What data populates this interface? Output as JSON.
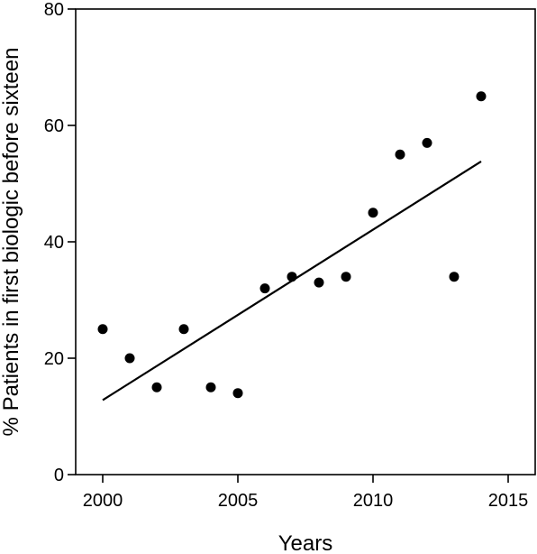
{
  "chart_data": {
    "type": "scatter",
    "title": "",
    "xlabel": "Years",
    "ylabel": "% Patients in first biologic before sixteen",
    "xlim": [
      1999,
      2016
    ],
    "ylim": [
      0,
      80
    ],
    "x_ticks": [
      2000,
      2005,
      2010,
      2015
    ],
    "y_ticks": [
      0,
      20,
      40,
      60,
      80
    ],
    "grid": false,
    "series": [
      {
        "points": [
          {
            "x": 2000,
            "y": 25
          },
          {
            "x": 2001,
            "y": 20
          },
          {
            "x": 2002,
            "y": 15
          },
          {
            "x": 2003,
            "y": 25
          },
          {
            "x": 2004,
            "y": 15
          },
          {
            "x": 2005,
            "y": 14
          },
          {
            "x": 2006,
            "y": 32
          },
          {
            "x": 2007,
            "y": 34
          },
          {
            "x": 2008,
            "y": 33
          },
          {
            "x": 2009,
            "y": 34
          },
          {
            "x": 2010,
            "y": 45
          },
          {
            "x": 2011,
            "y": 55
          },
          {
            "x": 2012,
            "y": 57
          },
          {
            "x": 2013,
            "y": 34
          },
          {
            "x": 2014,
            "y": 65
          }
        ]
      }
    ],
    "trendline": {
      "x": [
        2000,
        2014
      ],
      "y": [
        12.8,
        53.8
      ]
    }
  }
}
